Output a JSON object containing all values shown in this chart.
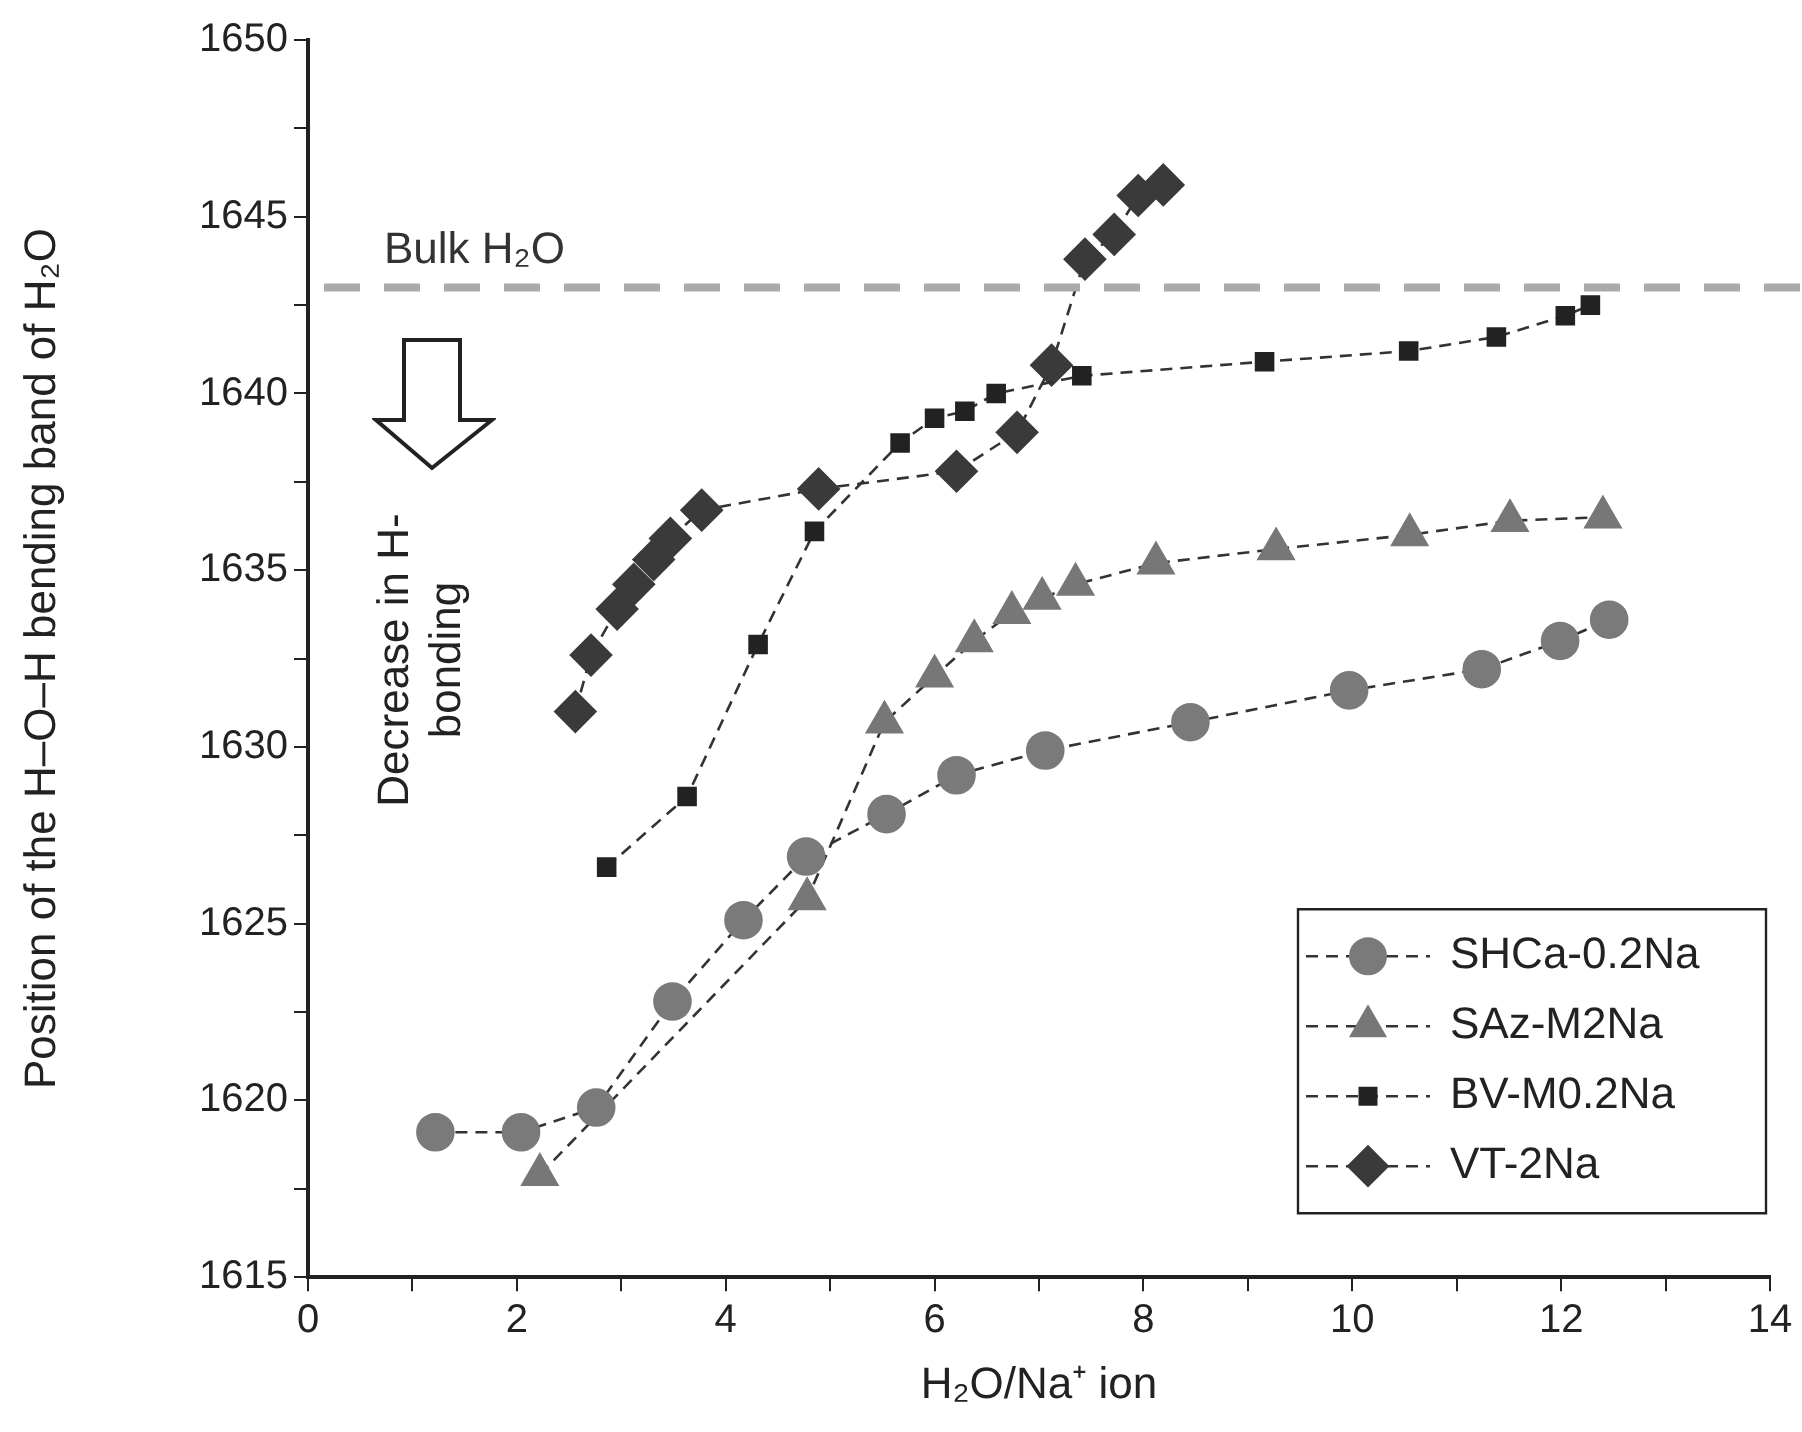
{
  "chart_data": {
    "type": "line",
    "xlabel": "H₂O/Na⁺ ion",
    "ylabel": "Position of the H–O–H bending band of H₂O",
    "xlim": [
      0,
      14
    ],
    "xticks": [
      0,
      {
        "value": 1,
        "label": null
      },
      2,
      {
        "value": 3,
        "label": null
      },
      4,
      {
        "value": 5,
        "label": null
      },
      6,
      {
        "value": 7,
        "label": null
      },
      8,
      {
        "value": 9,
        "label": null
      },
      10,
      {
        "value": 11,
        "label": null
      },
      12,
      {
        "value": 13,
        "label": null
      },
      14
    ],
    "ylim": [
      1615,
      1650
    ],
    "yticks": [
      1615,
      {
        "value": 1617.5,
        "label": null
      },
      1620,
      {
        "value": 1622.5,
        "label": null
      },
      1625,
      {
        "value": 1627.5,
        "label": null
      },
      1630,
      {
        "value": 1632.5,
        "label": null
      },
      1635,
      {
        "value": 1637.5,
        "label": null
      },
      1640,
      {
        "value": 1642.5,
        "label": null
      },
      1645,
      {
        "value": 1647.5,
        "label": null
      },
      1650
    ],
    "grid": false,
    "legend": "bottom right",
    "line_style": "dashed",
    "ref_lines": [
      {
        "axis": "y",
        "value": 1643,
        "label": "Bulk H₂O",
        "color": "#aaaaaa",
        "line_style": "dashed"
      }
    ],
    "annotations": [
      "Decrease in H-bonding"
    ],
    "series": [
      {
        "name": "SHCa-0.2Na",
        "color": "#7a7a7a",
        "marker": "circle",
        "x": [
          1.22,
          2.04,
          2.76,
          3.49,
          4.17,
          4.77,
          5.54,
          6.21,
          7.06,
          8.45,
          9.97,
          11.24,
          11.99,
          12.46
        ],
        "values": [
          1619.1,
          1619.1,
          1619.8,
          1622.8,
          1625.1,
          1626.9,
          1628.1,
          1629.2,
          1629.9,
          1630.7,
          1631.6,
          1632.2,
          1633.0,
          1633.6
        ]
      },
      {
        "name": "SAz-M2Na",
        "color": "#777777",
        "marker": "triangle",
        "x": [
          2.22,
          4.78,
          5.52,
          6.0,
          6.38,
          6.74,
          7.03,
          7.35,
          8.12,
          9.27,
          10.55,
          11.51,
          12.4
        ],
        "values": [
          1617.9,
          1625.7,
          1630.7,
          1632.0,
          1633.0,
          1633.8,
          1634.2,
          1634.6,
          1635.2,
          1635.6,
          1636.0,
          1636.4,
          1636.5
        ]
      },
      {
        "name": "BV-M0.2Na",
        "color": "#222222",
        "marker": "square",
        "x": [
          2.86,
          3.63,
          4.31,
          4.85,
          5.67,
          6.0,
          6.29,
          6.59,
          7.41,
          9.16,
          10.54,
          11.38,
          12.04,
          12.28
        ],
        "values": [
          1626.6,
          1628.6,
          1632.9,
          1636.1,
          1638.6,
          1639.3,
          1639.5,
          1640.0,
          1640.5,
          1640.9,
          1641.2,
          1641.6,
          1642.2,
          1642.5
        ]
      },
      {
        "name": "VT-2Na",
        "color": "#3a3a3a",
        "marker": "diamond",
        "x": [
          2.56,
          2.71,
          2.96,
          3.12,
          3.31,
          3.47,
          3.77,
          4.89,
          6.21,
          6.79,
          7.12,
          7.44,
          7.72,
          7.95,
          8.19
        ],
        "values": [
          1631.0,
          1632.6,
          1633.9,
          1634.6,
          1635.3,
          1635.9,
          1636.7,
          1637.3,
          1637.8,
          1638.9,
          1640.8,
          1643.8,
          1644.5,
          1645.6,
          1645.9
        ]
      }
    ]
  }
}
